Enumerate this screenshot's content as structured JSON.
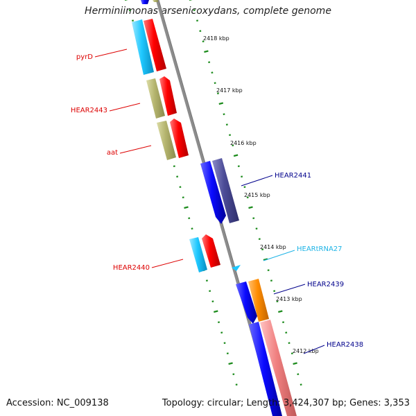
{
  "title": "Herminiimonas arsenicoxydans, complete genome",
  "accession_text": "Accession: NC_009138",
  "topology_text": "Topology: circular; Length: 3,424,307 bp; Genes: 3,353",
  "colors": {
    "backbone": "#8c8c8c",
    "tick": "#1e8c1e",
    "red": "#ff0000",
    "cyan": "#1ec8ff",
    "blue": "#0a0aff",
    "olive": "#b4b46e",
    "navy": "#4b4b96",
    "orange": "#ff8c00",
    "pink": "#f08080",
    "label_red": "#dd0000",
    "label_blue": "#00008b",
    "label_cyan": "#1eb4e6"
  },
  "scale_labels": [
    "2418 kbp",
    "2417 kbp",
    "2416 kbp",
    "2415 kbp",
    "2414 kbp",
    "2413 kbp",
    "2412 kbp"
  ],
  "gene_labels": [
    {
      "text": "pyrD",
      "color": "label_red"
    },
    {
      "text": "HEAR2443",
      "color": "label_red"
    },
    {
      "text": "aat",
      "color": "label_red"
    },
    {
      "text": "HEAR2441",
      "color": "label_blue"
    },
    {
      "text": "HEARtRNA27",
      "color": "label_cyan"
    },
    {
      "text": "HEAR2440",
      "color": "label_red"
    },
    {
      "text": "HEAR2439",
      "color": "label_blue"
    },
    {
      "text": "HEAR2438",
      "color": "label_blue"
    }
  ]
}
